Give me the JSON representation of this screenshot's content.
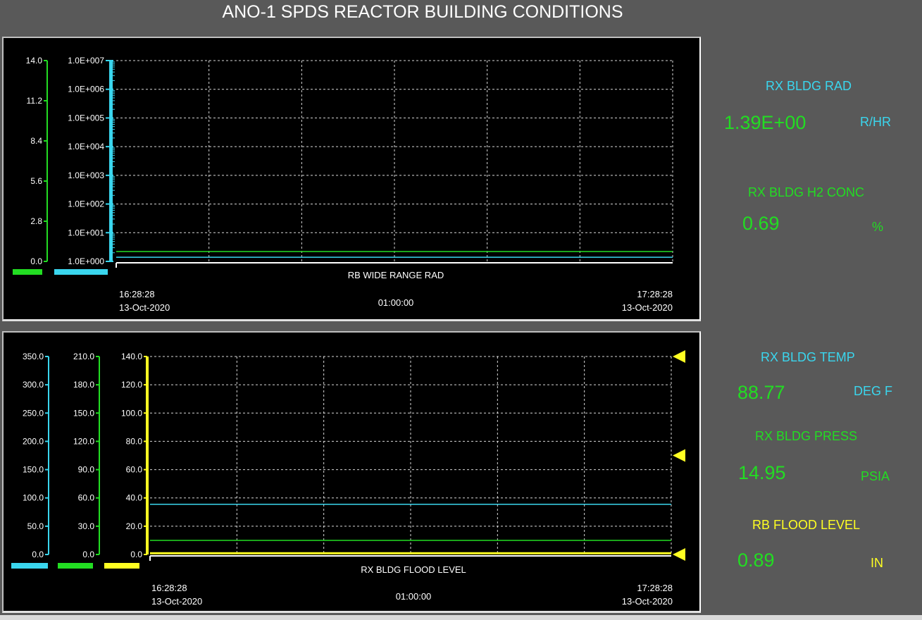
{
  "window": {
    "title": "ANO-1 SPDS REACTOR BUILDING CONDITIONS"
  },
  "colors": {
    "background": "#595959",
    "plot_bg": "#000000",
    "green": "#22dd22",
    "cyan": "#3ad6ee",
    "yellow": "#ffff22",
    "grid": "#ffffff"
  },
  "top_trend": {
    "name": "RB WIDE RANGE RAD",
    "time_start": "16:28:28",
    "date_start": "13-Oct-2020",
    "span": "01:00:00",
    "time_end": "17:28:28",
    "date_end": "13-Oct-2020",
    "linear_axis_ticks": [
      "14.0",
      "11.2",
      "8.4",
      "5.6",
      "2.8",
      "0.0"
    ],
    "log_axis_ticks": [
      "1.0E+007",
      "1.0E+006",
      "1.0E+005",
      "1.0E+004",
      "1.0E+003",
      "1.0E+002",
      "1.0E+001",
      "1.0E+000"
    ]
  },
  "bottom_trend": {
    "name": "RX BLDG FLOOD LEVEL",
    "time_start": "16:28:28",
    "date_start": "13-Oct-2020",
    "span": "01:00:00",
    "time_end": "17:28:28",
    "date_end": "13-Oct-2020",
    "axis1_ticks": [
      "350.0",
      "300.0",
      "250.0",
      "200.0",
      "150.0",
      "100.0",
      "50.0",
      "0.0"
    ],
    "axis2_ticks": [
      "210.0",
      "180.0",
      "150.0",
      "120.0",
      "90.0",
      "60.0",
      "30.0",
      "0.0"
    ],
    "axis3_ticks": [
      "140.0",
      "120.0",
      "100.0",
      "80.0",
      "60.0",
      "40.0",
      "20.0",
      "0.0"
    ]
  },
  "readouts": {
    "rad": {
      "label": "RX BLDG RAD",
      "value": "1.39E+00",
      "unit": "R/HR"
    },
    "h2": {
      "label": "RX BLDG H2 CONC",
      "value": "0.69",
      "unit": "%"
    },
    "temp": {
      "label": "RX BLDG TEMP",
      "value": "88.77",
      "unit": "DEG F"
    },
    "press": {
      "label": "RX BLDG PRESS",
      "value": "14.95",
      "unit": "PSIA"
    },
    "flood": {
      "label": "RB FLOOD LEVEL",
      "value": "0.89",
      "unit": "IN"
    }
  },
  "chart_data": [
    {
      "type": "line",
      "title": "RB WIDE RANGE RAD",
      "x": [
        "16:28:28",
        "17:28:28"
      ],
      "y_axes": [
        {
          "ticks": [
            0.0,
            2.8,
            5.6,
            8.4,
            11.2,
            14.0
          ],
          "range": [
            0.0,
            14.0
          ],
          "color": "green"
        },
        {
          "scale": "log",
          "range": [
            1,
            10000000
          ],
          "color": "cyan"
        }
      ],
      "series": [
        {
          "color": "green",
          "axis": 0,
          "values": [
            0.69,
            0.69
          ]
        },
        {
          "color": "cyan",
          "axis": 1,
          "values": [
            1.39,
            1.39
          ]
        }
      ],
      "grid": true
    },
    {
      "type": "line",
      "title": "RX BLDG FLOOD LEVEL",
      "x": [
        "16:28:28",
        "17:28:28"
      ],
      "y_axes": [
        {
          "range": [
            0.0,
            350.0
          ],
          "color": "cyan"
        },
        {
          "range": [
            0.0,
            210.0
          ],
          "color": "green"
        },
        {
          "range": [
            0.0,
            140.0
          ],
          "color": "yellow"
        }
      ],
      "series": [
        {
          "color": "cyan",
          "axis": 0,
          "values": [
            88.77,
            88.77
          ]
        },
        {
          "color": "green",
          "axis": 1,
          "values": [
            14.95,
            14.95
          ]
        },
        {
          "color": "yellow",
          "axis": 2,
          "values": [
            0.89,
            0.89
          ]
        }
      ],
      "limit_markers": {
        "axis": 2,
        "values": [
          140.0,
          70.0,
          0.0
        ]
      },
      "grid": true
    }
  ]
}
